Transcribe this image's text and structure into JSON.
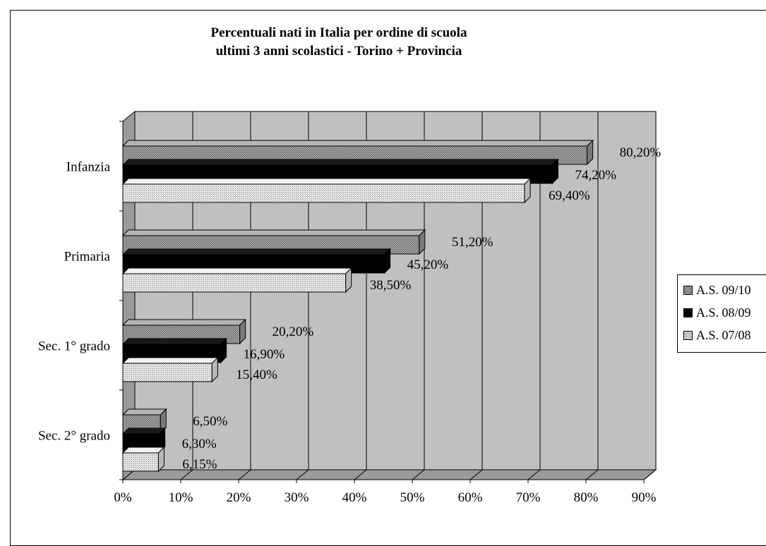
{
  "chart_data": {
    "type": "bar",
    "orientation": "horizontal",
    "three_d": true,
    "title": [
      "Percentuali nati in Italia per ordine di scuola",
      "ultimi 3 anni scolastici - Torino + Provincia"
    ],
    "categories": [
      "Infanzia",
      "Primaria",
      "Sec. 1° grado",
      "Sec. 2° grado"
    ],
    "series": [
      {
        "name": "A.S. 09/10",
        "values": [
          80.2,
          51.2,
          20.2,
          6.5
        ],
        "labels": [
          "80,20%",
          "51,20%",
          "20,20%",
          "6,50%"
        ],
        "pattern": "hatched-gray"
      },
      {
        "name": "A.S. 08/09",
        "values": [
          74.2,
          45.2,
          16.9,
          6.3
        ],
        "labels": [
          "74,20%",
          "45,20%",
          "16,90%",
          "6,30%"
        ],
        "pattern": "solid-black"
      },
      {
        "name": "A.S. 07/08",
        "values": [
          69.4,
          38.5,
          15.4,
          6.15
        ],
        "labels": [
          "69,40%",
          "38,50%",
          "15,40%",
          "6,15%"
        ],
        "pattern": "dotted-light"
      }
    ],
    "xlim": [
      0,
      90
    ],
    "x_ticks": [
      0,
      10,
      20,
      30,
      40,
      50,
      60,
      70,
      80,
      90
    ],
    "x_tick_labels": [
      "0%",
      "10%",
      "20%",
      "30%",
      "40%",
      "50%",
      "60%",
      "70%",
      "80%",
      "90%"
    ],
    "grid": true,
    "legend_position": "right",
    "colors": {
      "wall": "#c0c0c0",
      "floor": "#9a9a9a",
      "series_0": "#9b9b9b",
      "series_1": "#000000",
      "series_2": "#e2e2e2"
    }
  }
}
